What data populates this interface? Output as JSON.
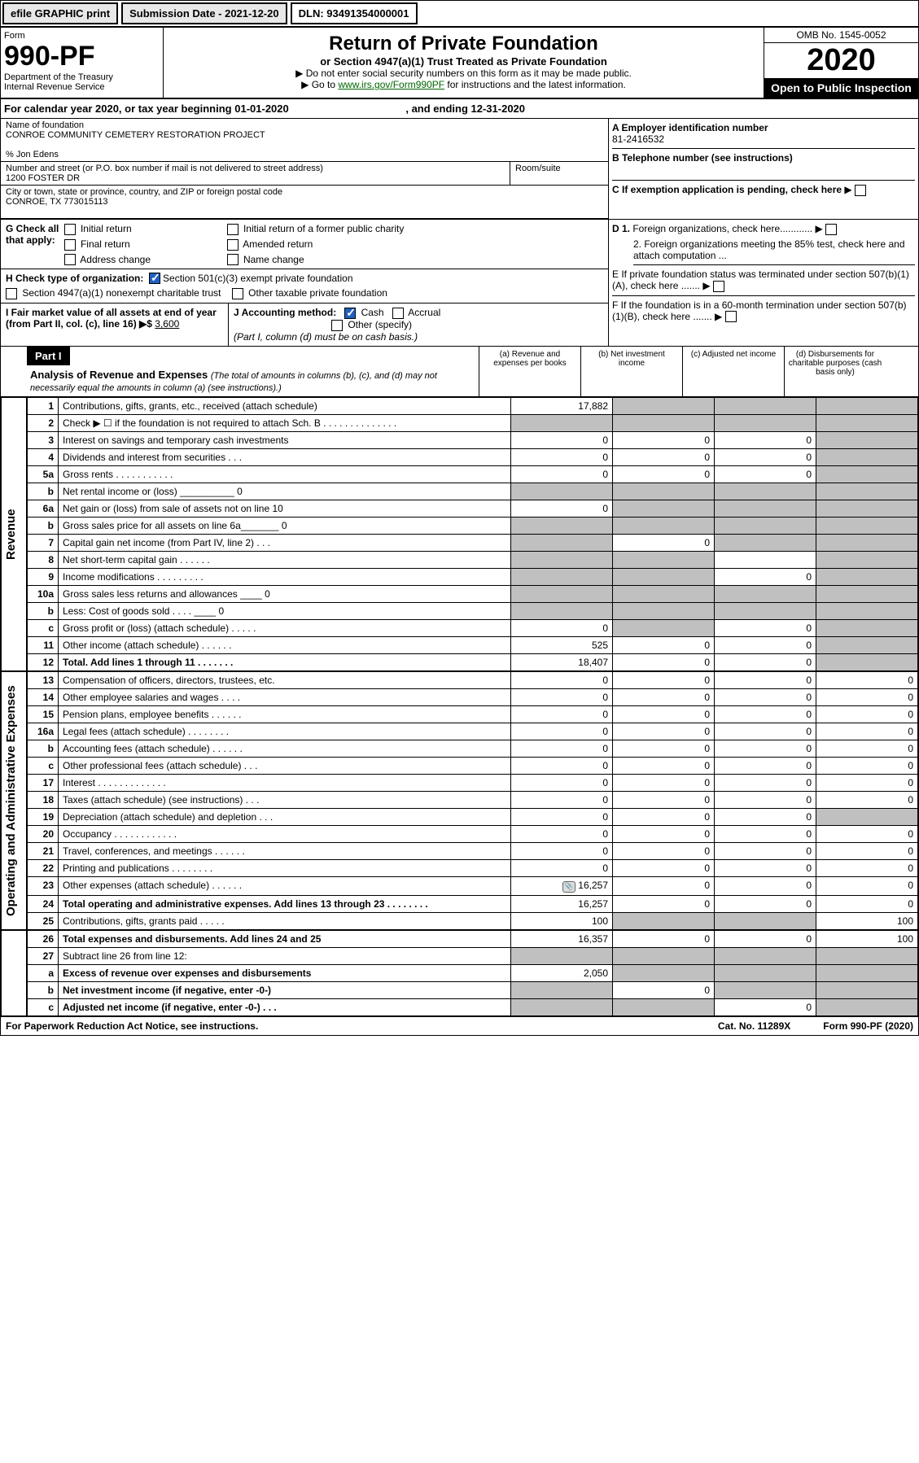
{
  "topbar": {
    "efile": "efile GRAPHIC print",
    "submission": "Submission Date - 2021-12-20",
    "dln": "DLN: 93491354000001"
  },
  "header": {
    "form_label": "Form",
    "form_number": "990-PF",
    "dept1": "Department of the Treasury",
    "dept2": "Internal Revenue Service",
    "title": "Return of Private Foundation",
    "subtitle": "or Section 4947(a)(1) Trust Treated as Private Foundation",
    "instr1": "▶ Do not enter social security numbers on this form as it may be made public.",
    "instr2_pre": "▶ Go to ",
    "instr2_link": "www.irs.gov/Form990PF",
    "instr2_post": " for instructions and the latest information.",
    "omb": "OMB No. 1545-0052",
    "year": "2020",
    "open": "Open to Public Inspection"
  },
  "calendar": {
    "text_pre": "For calendar year 2020, or tax year beginning ",
    "begin": "01-01-2020",
    "mid": " , and ending ",
    "end": "12-31-2020"
  },
  "info": {
    "name_label": "Name of foundation",
    "name": "CONROE COMMUNITY CEMETERY RESTORATION PROJECT",
    "care_of": "% Jon Edens",
    "addr_label": "Number and street (or P.O. box number if mail is not delivered to street address)",
    "addr": "1200 FOSTER DR",
    "room_label": "Room/suite",
    "city_label": "City or town, state or province, country, and ZIP or foreign postal code",
    "city": "CONROE, TX  773015113",
    "a_label": "A Employer identification number",
    "a_val": "81-2416532",
    "b_label": "B Telephone number (see instructions)",
    "c_label": "C If exemption application is pending, check here",
    "d1_label": "D 1. Foreign organizations, check here............",
    "d2_label": "2. Foreign organizations meeting the 85% test, check here and attach computation ...",
    "e_label": "E  If private foundation status was terminated under section 507(b)(1)(A), check here .......",
    "f_label": "F  If the foundation is in a 60-month termination under section 507(b)(1)(B), check here .......",
    "g_label": "G Check all that apply:",
    "g_opts": [
      "Initial return",
      "Initial return of a former public charity",
      "Final return",
      "Amended return",
      "Address change",
      "Name change"
    ],
    "h_label": "H Check type of organization:",
    "h_opt1": "Section 501(c)(3) exempt private foundation",
    "h_opt2": "Section 4947(a)(1) nonexempt charitable trust",
    "h_opt3": "Other taxable private foundation",
    "i_label": "I Fair market value of all assets at end of year (from Part II, col. (c), line 16) ▶$ ",
    "i_val": "3,600",
    "j_label": "J Accounting method:",
    "j_opt1": "Cash",
    "j_opt2": "Accrual",
    "j_opt3": "Other (specify)",
    "j_note": "(Part I, column (d) must be on cash basis.)"
  },
  "part1": {
    "badge": "Part I",
    "title": "Analysis of Revenue and Expenses ",
    "desc": "(The total of amounts in columns (b), (c), and (d) may not necessarily equal the amounts in column (a) (see instructions).)",
    "col_a": "(a)   Revenue and expenses per books",
    "col_b": "(b)   Net investment income",
    "col_c": "(c)   Adjusted net income",
    "col_d": "(d)   Disbursements for charitable purposes (cash basis only)"
  },
  "side_labels": {
    "revenue": "Revenue",
    "expenses": "Operating and Administrative Expenses"
  },
  "rows": [
    {
      "n": "1",
      "d": "Contributions, gifts, grants, etc., received (attach schedule)",
      "a": "17,882",
      "b": "",
      "c": "",
      "dd": "",
      "sb": true,
      "sc": true,
      "sd": true
    },
    {
      "n": "2",
      "d": "Check ▶ ☐ if the foundation is not required to attach Sch. B   .  .  .  .  .  .  .  .  .  .  .  .  .  .",
      "a": "",
      "b": "",
      "c": "",
      "dd": "",
      "sa": true,
      "sb": true,
      "sc": true,
      "sd": true
    },
    {
      "n": "3",
      "d": "Interest on savings and temporary cash investments",
      "a": "0",
      "b": "0",
      "c": "0",
      "dd": "",
      "sd": true
    },
    {
      "n": "4",
      "d": "Dividends and interest from securities   .  .  .",
      "a": "0",
      "b": "0",
      "c": "0",
      "dd": "",
      "sd": true
    },
    {
      "n": "5a",
      "d": "Gross rents   .  .  .  .  .  .  .  .  .  .  .",
      "a": "0",
      "b": "0",
      "c": "0",
      "dd": "",
      "sd": true
    },
    {
      "n": "b",
      "d": "Net rental income or (loss) __________ 0",
      "a": "",
      "b": "",
      "c": "",
      "dd": "",
      "sa": true,
      "sb": true,
      "sc": true,
      "sd": true
    },
    {
      "n": "6a",
      "d": "Net gain or (loss) from sale of assets not on line 10",
      "a": "0",
      "b": "",
      "c": "",
      "dd": "",
      "sb": true,
      "sc": true,
      "sd": true
    },
    {
      "n": "b",
      "d": "Gross sales price for all assets on line 6a_______ 0",
      "a": "",
      "b": "",
      "c": "",
      "dd": "",
      "sa": true,
      "sb": true,
      "sc": true,
      "sd": true
    },
    {
      "n": "7",
      "d": "Capital gain net income (from Part IV, line 2)   .  .  .",
      "a": "",
      "b": "0",
      "c": "",
      "dd": "",
      "sa": true,
      "sc": true,
      "sd": true
    },
    {
      "n": "8",
      "d": "Net short-term capital gain   .  .  .  .  .  .",
      "a": "",
      "b": "",
      "c": "",
      "dd": "",
      "sa": true,
      "sb": true,
      "sd": true
    },
    {
      "n": "9",
      "d": "Income modifications .  .  .  .  .  .  .  .  .",
      "a": "",
      "b": "",
      "c": "0",
      "dd": "",
      "sa": true,
      "sb": true,
      "sd": true
    },
    {
      "n": "10a",
      "d": "Gross sales less returns and allowances ____ 0",
      "a": "",
      "b": "",
      "c": "",
      "dd": "",
      "sa": true,
      "sb": true,
      "sc": true,
      "sd": true
    },
    {
      "n": "b",
      "d": "Less: Cost of goods sold   .  .  .  . ____ 0",
      "a": "",
      "b": "",
      "c": "",
      "dd": "",
      "sa": true,
      "sb": true,
      "sc": true,
      "sd": true
    },
    {
      "n": "c",
      "d": "Gross profit or (loss) (attach schedule)   .  .  .  .  .",
      "a": "0",
      "b": "",
      "c": "0",
      "dd": "",
      "sb": true,
      "sd": true
    },
    {
      "n": "11",
      "d": "Other income (attach schedule)   .  .  .  .  .  .",
      "a": "525",
      "b": "0",
      "c": "0",
      "dd": "",
      "sd": true
    },
    {
      "n": "12",
      "d": "Total. Add lines 1 through 11   .  .  .  .  .  .  .",
      "a": "18,407",
      "b": "0",
      "c": "0",
      "dd": "",
      "bold": true,
      "sd": true
    },
    {
      "n": "13",
      "d": "Compensation of officers, directors, trustees, etc.",
      "a": "0",
      "b": "0",
      "c": "0",
      "dd": "0"
    },
    {
      "n": "14",
      "d": "Other employee salaries and wages   .  .  .  .",
      "a": "0",
      "b": "0",
      "c": "0",
      "dd": "0"
    },
    {
      "n": "15",
      "d": "Pension plans, employee benefits .  .  .  .  .  .",
      "a": "0",
      "b": "0",
      "c": "0",
      "dd": "0"
    },
    {
      "n": "16a",
      "d": "Legal fees (attach schedule) .  .  .  .  .  .  .  .",
      "a": "0",
      "b": "0",
      "c": "0",
      "dd": "0"
    },
    {
      "n": "b",
      "d": "Accounting fees (attach schedule) .  .  .  .  .  .",
      "a": "0",
      "b": "0",
      "c": "0",
      "dd": "0"
    },
    {
      "n": "c",
      "d": "Other professional fees (attach schedule)   .  .  .",
      "a": "0",
      "b": "0",
      "c": "0",
      "dd": "0"
    },
    {
      "n": "17",
      "d": "Interest .  .  .  .  .  .  .  .  .  .  .  .  .",
      "a": "0",
      "b": "0",
      "c": "0",
      "dd": "0"
    },
    {
      "n": "18",
      "d": "Taxes (attach schedule) (see instructions)   .  .  .",
      "a": "0",
      "b": "0",
      "c": "0",
      "dd": "0"
    },
    {
      "n": "19",
      "d": "Depreciation (attach schedule) and depletion   .  .  .",
      "a": "0",
      "b": "0",
      "c": "0",
      "dd": "",
      "sd": true
    },
    {
      "n": "20",
      "d": "Occupancy .  .  .  .  .  .  .  .  .  .  .  .",
      "a": "0",
      "b": "0",
      "c": "0",
      "dd": "0"
    },
    {
      "n": "21",
      "d": "Travel, conferences, and meetings .  .  .  .  .  .",
      "a": "0",
      "b": "0",
      "c": "0",
      "dd": "0"
    },
    {
      "n": "22",
      "d": "Printing and publications .  .  .  .  .  .  .  .",
      "a": "0",
      "b": "0",
      "c": "0",
      "dd": "0"
    },
    {
      "n": "23",
      "d": "Other expenses (attach schedule) .  .  .  .  .  .",
      "a": "16,257",
      "b": "0",
      "c": "0",
      "dd": "0",
      "icon": true
    },
    {
      "n": "24",
      "d": "Total operating and administrative expenses. Add lines 13 through 23   .  .  .  .  .  .  .  .",
      "a": "16,257",
      "b": "0",
      "c": "0",
      "dd": "0",
      "bold": true
    },
    {
      "n": "25",
      "d": "Contributions, gifts, grants paid   .  .  .  .  .",
      "a": "100",
      "b": "",
      "c": "",
      "dd": "100",
      "sb": true,
      "sc": true
    },
    {
      "n": "26",
      "d": "Total expenses and disbursements. Add lines 24 and 25",
      "a": "16,357",
      "b": "0",
      "c": "0",
      "dd": "100",
      "bold": true
    },
    {
      "n": "27",
      "d": "Subtract line 26 from line 12:",
      "a": "",
      "b": "",
      "c": "",
      "dd": "",
      "sa": true,
      "sb": true,
      "sc": true,
      "sd": true
    },
    {
      "n": "a",
      "d": "Excess of revenue over expenses and disbursements",
      "a": "2,050",
      "b": "",
      "c": "",
      "dd": "",
      "bold": true,
      "sb": true,
      "sc": true,
      "sd": true
    },
    {
      "n": "b",
      "d": "Net investment income (if negative, enter -0-)",
      "a": "",
      "b": "0",
      "c": "",
      "dd": "",
      "bold": true,
      "sa": true,
      "sc": true,
      "sd": true
    },
    {
      "n": "c",
      "d": "Adjusted net income (if negative, enter -0-)   .  .  .",
      "a": "",
      "b": "",
      "c": "0",
      "dd": "",
      "bold": true,
      "sa": true,
      "sb": true,
      "sd": true
    }
  ],
  "footer": {
    "left": "For Paperwork Reduction Act Notice, see instructions.",
    "mid": "Cat. No. 11289X",
    "right": "Form 990-PF (2020)"
  }
}
